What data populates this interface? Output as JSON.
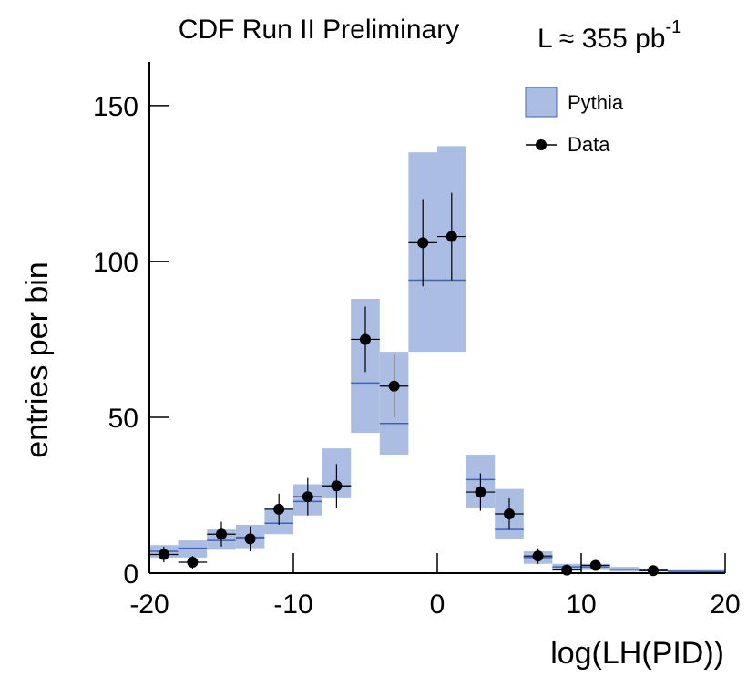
{
  "chart_data": {
    "type": "histogram",
    "title": "CDF Run II Preliminary",
    "luminosity": "L ≈ 355 pb",
    "luminosity_exponent": "-1",
    "x_label": "log(LH(PID))",
    "y_label": "entries per bin",
    "bins": [
      -20,
      -18,
      -16,
      -14,
      -12,
      -10,
      -8,
      -6,
      -4,
      -2,
      0,
      2,
      4,
      6,
      8,
      10,
      12,
      14,
      16,
      18,
      20
    ],
    "series": [
      {
        "name": "Pythia",
        "color": "#abbde3",
        "line_color": "#3f64b0",
        "values": [
          7,
          8,
          10.5,
          11.5,
          16,
          23,
          28,
          61,
          48,
          94,
          94,
          30,
          14,
          5,
          2,
          2,
          1.2,
          1,
          0.6,
          0.5
        ],
        "low": [
          5,
          5,
          7.5,
          8,
          12.5,
          18.5,
          24,
          45,
          38,
          71,
          71,
          21,
          11,
          3,
          1,
          1,
          0.5,
          0.5,
          0.2,
          0.2
        ],
        "high": [
          9,
          10.5,
          14,
          15.5,
          20.5,
          28.5,
          40,
          88,
          71,
          135,
          137,
          38,
          27,
          7,
          3,
          3,
          2,
          1.5,
          1,
          1
        ]
      },
      {
        "name": "Data",
        "color": "#000000",
        "values": [
          6,
          3.5,
          12.5,
          11,
          20.5,
          24.5,
          28,
          75,
          60,
          106,
          108,
          26,
          19,
          5.5,
          1,
          2.5,
          null,
          0.8,
          null,
          null
        ],
        "errors": [
          2.5,
          2,
          4,
          4,
          5,
          6,
          7,
          10.5,
          10,
          14,
          14,
          6,
          5,
          2.5,
          1,
          1.5,
          null,
          1,
          null,
          null
        ]
      }
    ],
    "xlim": [
      -20,
      20
    ],
    "ylim": [
      0,
      164
    ],
    "xticks": [
      -20,
      -10,
      0,
      10,
      20
    ],
    "yticks": [
      0,
      50,
      100,
      150
    ],
    "legend": "top-right"
  }
}
